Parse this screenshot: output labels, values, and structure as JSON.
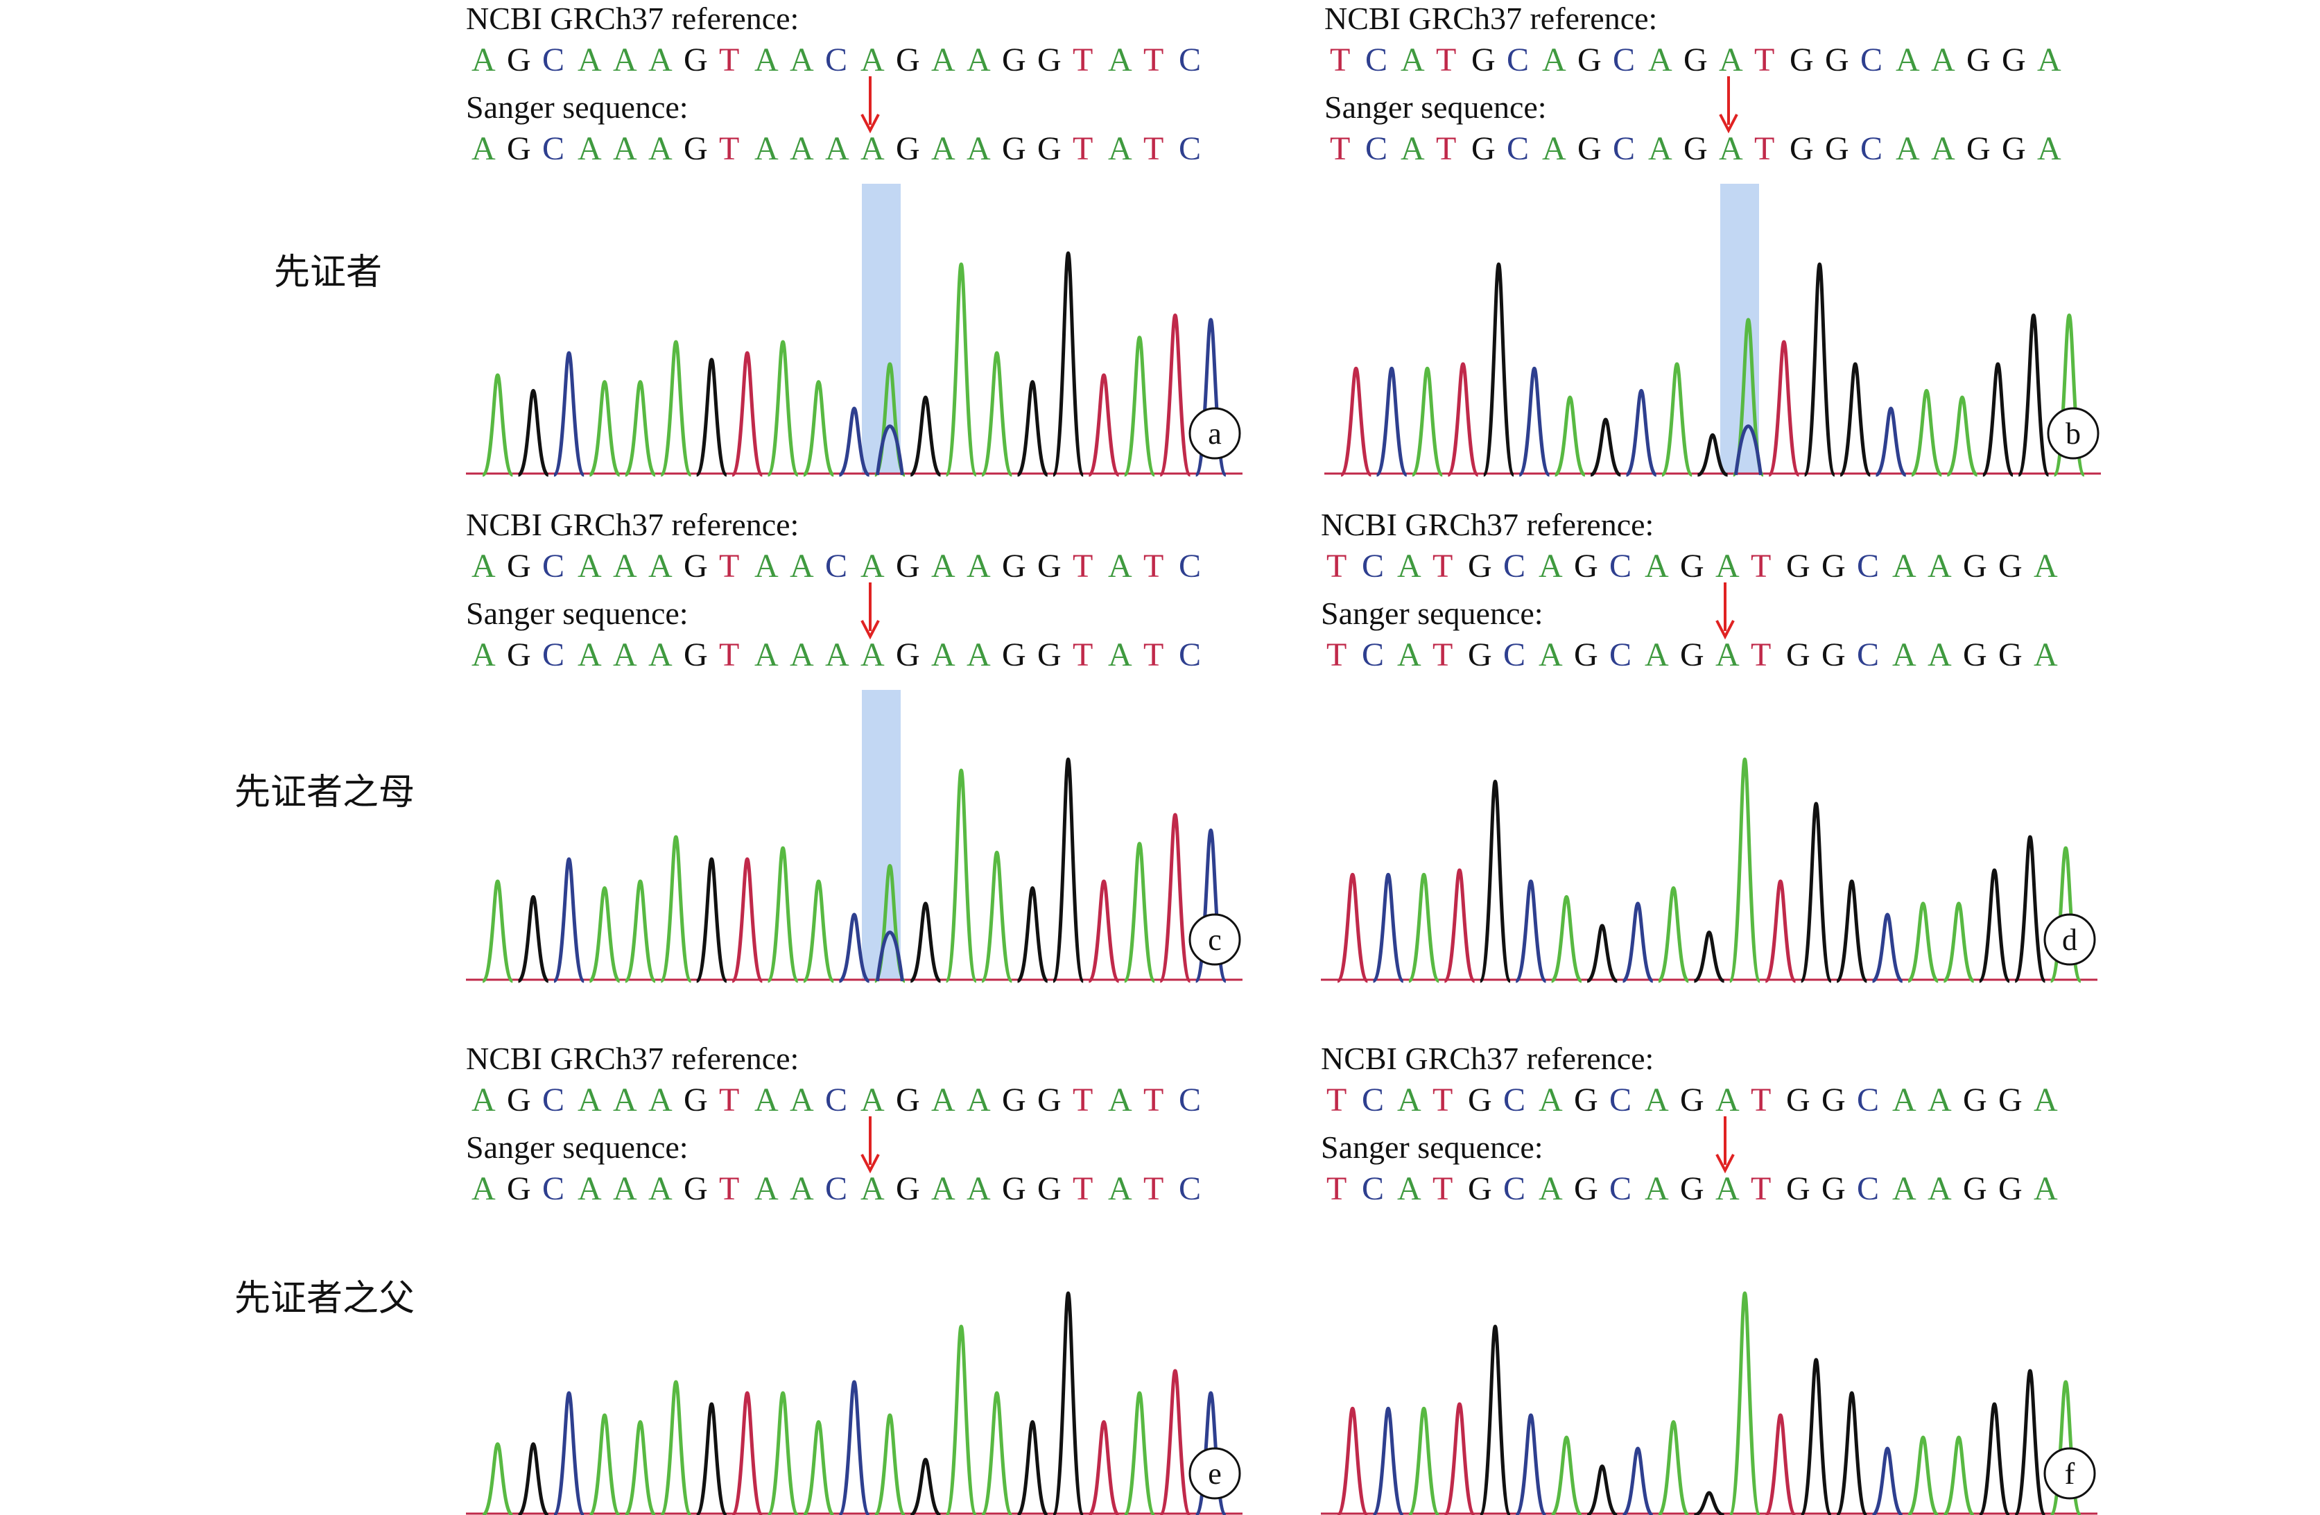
{
  "row_labels": {
    "proband": "先证者",
    "mother": "先证者之母",
    "father": "先证者之父"
  },
  "colors": {
    "A": "#58b942",
    "C": "#2e3f8f",
    "G": "#111111",
    "T": "#c0294a",
    "highlight": "#aec9ef",
    "arrow": "#e02222"
  },
  "panels": [
    {
      "id": "a",
      "row": "proband",
      "ref_label": "NCBI GRCh37 reference:",
      "ref_seq": "AGCAAAGTAACAGAAGGTATC",
      "sanger_label": "Sanger sequence:",
      "sanger_seq": "AGCAAAGTAAAAGAAGGTATC",
      "arrow_index": 11,
      "highlight": true,
      "peaks": [
        "A",
        "G",
        "C",
        "A",
        "A",
        "A",
        "G",
        "T",
        "A",
        "A",
        "C",
        "A",
        "G",
        "A",
        "A",
        "G",
        "G",
        "T",
        "A",
        "T",
        "C"
      ],
      "heights": [
        0.45,
        0.38,
        0.55,
        0.42,
        0.42,
        0.6,
        0.52,
        0.55,
        0.6,
        0.42,
        0.3,
        0.5,
        0.35,
        0.95,
        0.55,
        0.42,
        1.0,
        0.45,
        0.62,
        0.72,
        0.7
      ]
    },
    {
      "id": "b",
      "row": "proband",
      "ref_label": "NCBI GRCh37 reference:",
      "ref_seq": "TCATGCAGCAGATGGCAAGGA",
      "sanger_label": "Sanger sequence:",
      "sanger_seq": "TCATGCAGCAGATGGCAAGGA",
      "arrow_index": 11,
      "highlight": true,
      "peaks": [
        "T",
        "C",
        "A",
        "T",
        "G",
        "C",
        "A",
        "G",
        "C",
        "A",
        "G",
        "A",
        "T",
        "G",
        "G",
        "C",
        "A",
        "A",
        "G",
        "G",
        "A"
      ],
      "heights": [
        0.48,
        0.48,
        0.48,
        0.5,
        0.95,
        0.48,
        0.35,
        0.25,
        0.38,
        0.5,
        0.18,
        0.7,
        0.6,
        0.95,
        0.5,
        0.3,
        0.38,
        0.35,
        0.5,
        0.72,
        0.72
      ]
    },
    {
      "id": "c",
      "row": "mother",
      "ref_label": "NCBI GRCh37 reference:",
      "ref_seq": "AGCAAAGTAACAGAAGGTATC",
      "sanger_label": "Sanger sequence:",
      "sanger_seq": "AGCAAAGTAAAAGAAGGTATC",
      "arrow_index": 11,
      "highlight": true,
      "peaks": [
        "A",
        "G",
        "C",
        "A",
        "A",
        "A",
        "G",
        "T",
        "A",
        "A",
        "C",
        "A",
        "G",
        "A",
        "A",
        "G",
        "G",
        "T",
        "A",
        "T",
        "C"
      ],
      "heights": [
        0.45,
        0.38,
        0.55,
        0.42,
        0.45,
        0.65,
        0.55,
        0.55,
        0.6,
        0.45,
        0.3,
        0.52,
        0.35,
        0.95,
        0.58,
        0.42,
        1.0,
        0.45,
        0.62,
        0.75,
        0.68
      ]
    },
    {
      "id": "d",
      "row": "mother",
      "ref_label": "NCBI GRCh37 reference:",
      "ref_seq": "TCATGCAGCAGATGGCAAGGA",
      "sanger_label": "Sanger sequence:",
      "sanger_seq": "TCATGCAGCAGATGGCAAGGA",
      "arrow_index": 11,
      "highlight": false,
      "peaks": [
        "T",
        "C",
        "A",
        "T",
        "G",
        "C",
        "A",
        "G",
        "C",
        "A",
        "G",
        "A",
        "T",
        "G",
        "G",
        "C",
        "A",
        "A",
        "G",
        "G",
        "A"
      ],
      "heights": [
        0.48,
        0.48,
        0.48,
        0.5,
        0.9,
        0.45,
        0.38,
        0.25,
        0.35,
        0.42,
        0.22,
        1.0,
        0.45,
        0.8,
        0.45,
        0.3,
        0.35,
        0.35,
        0.5,
        0.65,
        0.6
      ]
    },
    {
      "id": "e",
      "row": "father",
      "ref_label": "NCBI GRCh37 reference:",
      "ref_seq": "AGCAAAGTAACAGAAGGTATC",
      "sanger_label": "Sanger sequence:",
      "sanger_seq": "AGCAAAGTAACAGAAGGTATC",
      "arrow_index": 11,
      "highlight": false,
      "peaks": [
        "A",
        "G",
        "C",
        "A",
        "A",
        "A",
        "G",
        "T",
        "A",
        "A",
        "C",
        "A",
        "G",
        "A",
        "A",
        "G",
        "G",
        "T",
        "A",
        "T",
        "C"
      ],
      "heights": [
        0.32,
        0.32,
        0.55,
        0.45,
        0.42,
        0.6,
        0.5,
        0.55,
        0.55,
        0.42,
        0.6,
        0.45,
        0.25,
        0.85,
        0.55,
        0.42,
        1.0,
        0.42,
        0.55,
        0.65,
        0.55
      ]
    },
    {
      "id": "f",
      "row": "father",
      "ref_label": "NCBI GRCh37 reference:",
      "ref_seq": "TCATGCAGCAGATGGCAAGGA",
      "sanger_label": "Sanger sequence:",
      "sanger_seq": "TCATGCAGCAGATGGCAAGGA",
      "arrow_index": 11,
      "highlight": false,
      "peaks": [
        "T",
        "C",
        "A",
        "T",
        "G",
        "C",
        "A",
        "G",
        "C",
        "A",
        "G",
        "A",
        "T",
        "G",
        "G",
        "C",
        "A",
        "A",
        "G",
        "G",
        "A"
      ],
      "heights": [
        0.48,
        0.48,
        0.48,
        0.5,
        0.85,
        0.45,
        0.35,
        0.22,
        0.3,
        0.42,
        0.1,
        1.0,
        0.45,
        0.7,
        0.55,
        0.3,
        0.35,
        0.35,
        0.5,
        0.65,
        0.6
      ]
    }
  ]
}
